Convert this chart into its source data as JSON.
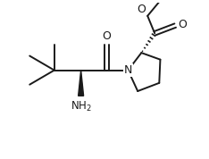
{
  "bg_color": "#ffffff",
  "line_color": "#1a1a1a",
  "line_width": 1.4,
  "font_size": 8.5,
  "fig_width": 2.34,
  "fig_height": 1.78,
  "dpi": 100,
  "xlim": [
    0,
    10
  ],
  "ylim": [
    0,
    7.6
  ]
}
